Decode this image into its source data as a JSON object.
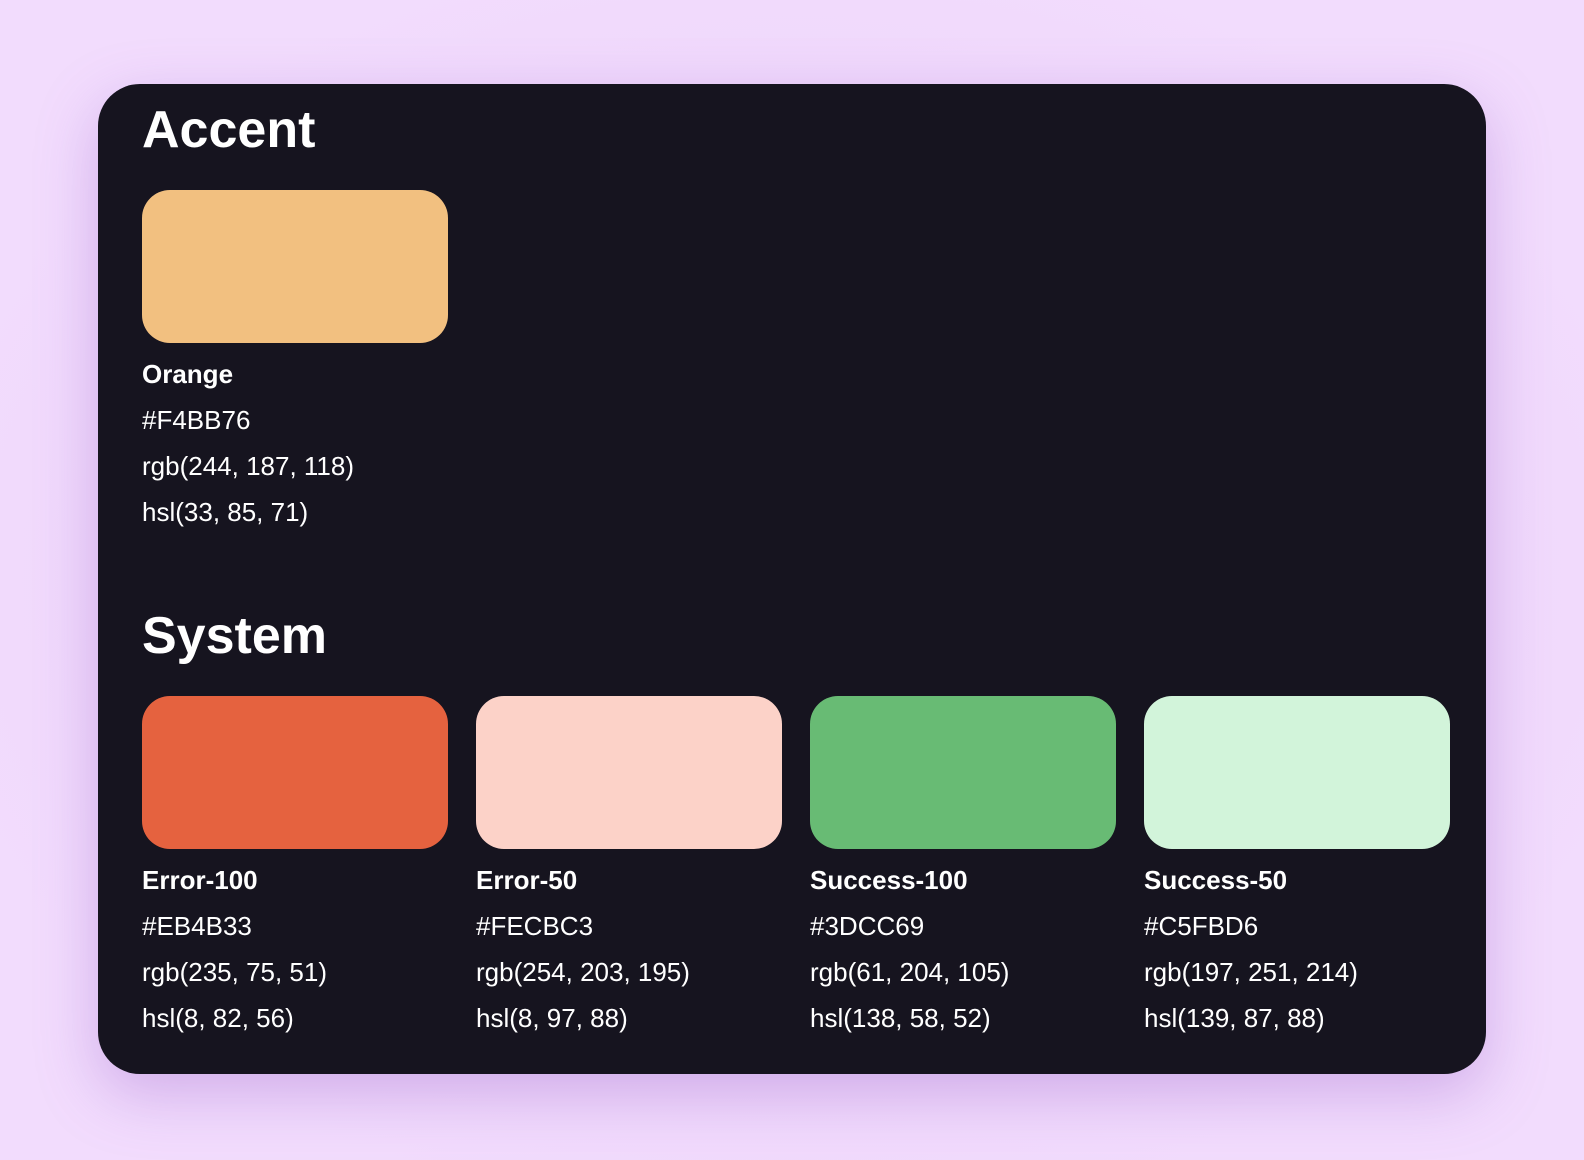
{
  "sections": [
    {
      "title": "Accent",
      "swatches": [
        {
          "name": "Orange",
          "hex": "#F4BB76",
          "rgb": "rgb(244, 187, 118)",
          "hsl": "hsl(33, 85, 71)",
          "color": "#f2c080"
        }
      ]
    },
    {
      "title": "System",
      "swatches": [
        {
          "name": "Error-100",
          "hex": "#EB4B33",
          "rgb": "rgb(235, 75, 51)",
          "hsl": "hsl(8, 82, 56)",
          "color": "#e5623f"
        },
        {
          "name": "Error-50",
          "hex": "#FECBC3",
          "rgb": "rgb(254, 203, 195)",
          "hsl": "hsl(8, 97, 88)",
          "color": "#fcd2c8"
        },
        {
          "name": "Success-100",
          "hex": "#3DCC69",
          "rgb": "rgb(61, 204, 105)",
          "hsl": "hsl(138, 58, 52)",
          "color": "#68bb74"
        },
        {
          "name": "Success-50",
          "hex": "#C5FBD6",
          "rgb": "rgb(197, 251, 214)",
          "hsl": "hsl(139, 87, 88)",
          "color": "#d2f4da"
        }
      ]
    }
  ]
}
